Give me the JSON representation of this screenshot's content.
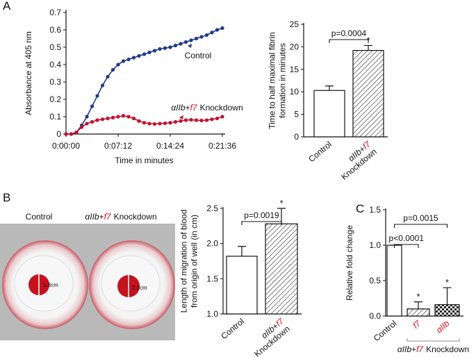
{
  "panel_labels": [
    "A",
    "B",
    "C"
  ],
  "photo": {
    "labels": [
      [
        "Control"
      ],
      [
        "αIIb",
        "+",
        "f7",
        "Knockdown"
      ]
    ],
    "measurements": [
      "1.8cm",
      "2.3cm"
    ]
  },
  "chart_data": [
    {
      "type": "line",
      "ylabel": "Absorbance at 405 nm",
      "xlabel": "Time in minutes",
      "x": [
        0,
        0.72,
        1.44,
        2.16,
        2.88,
        3.6,
        4.32,
        5.04,
        5.76,
        6.48,
        7.2,
        7.92,
        8.64,
        9.36,
        10.08,
        10.8,
        11.52,
        12.24,
        12.96,
        13.68,
        14.4,
        15.12,
        15.84,
        16.56,
        17.28,
        18,
        18.72,
        19.44,
        20.16,
        20.88,
        21.6
      ],
      "xlim": [
        0,
        21.6
      ],
      "xticks": [
        {
          "value": 0,
          "label": "0:00:00"
        },
        {
          "value": 7.2,
          "label": "0:07:12"
        },
        {
          "value": 14.4,
          "label": "0:14:24"
        },
        {
          "value": 21.6,
          "label": "0:21:36"
        }
      ],
      "ylim": [
        0,
        0.7
      ],
      "yticks": [
        0,
        0.1,
        0.2,
        0.3,
        0.4,
        0.5,
        0.6,
        0.7
      ],
      "series": [
        {
          "name": "Control",
          "color": "#1f3a8a",
          "values": [
            0,
            0,
            0.01,
            0.05,
            0.1,
            0.16,
            0.22,
            0.28,
            0.33,
            0.37,
            0.4,
            0.42,
            0.43,
            0.44,
            0.45,
            0.46,
            0.47,
            0.48,
            0.49,
            0.495,
            0.5,
            0.51,
            0.52,
            0.53,
            0.54,
            0.55,
            0.56,
            0.57,
            0.585,
            0.6,
            0.61
          ]
        },
        {
          "name_parts": [
            "αIIb",
            "+",
            "f7",
            "Knockdown"
          ],
          "color": "#c8102e",
          "values": [
            0,
            0,
            0.01,
            0.04,
            0.06,
            0.07,
            0.08,
            0.085,
            0.09,
            0.095,
            0.1,
            0.105,
            0.1,
            0.09,
            0.075,
            0.065,
            0.06,
            0.058,
            0.06,
            0.062,
            0.065,
            0.07,
            0.075,
            0.08,
            0.082,
            0.08,
            0.078,
            0.08,
            0.085,
            0.09,
            0.1
          ]
        }
      ]
    },
    {
      "type": "bar",
      "ylabel_lines": [
        "Time to half maximal fibrin",
        "formation in minutes"
      ],
      "categories": [
        [
          "Control"
        ],
        [
          "αIIb",
          "+",
          "f7",
          "Knockdown"
        ]
      ],
      "values": [
        10.3,
        19.2
      ],
      "errors": [
        1.0,
        1.1
      ],
      "fills": [
        "white",
        "hatch"
      ],
      "significance": [
        null,
        "*"
      ],
      "comparisons": [
        "p=0.0004"
      ],
      "ylim": [
        0,
        25
      ],
      "yticks": [
        0,
        5,
        10,
        15,
        20,
        25
      ]
    },
    {
      "type": "bar",
      "ylabel_lines": [
        "Length of migration of blood",
        "from origin of well (in cm)"
      ],
      "categories": [
        [
          "Control"
        ],
        [
          "αIIb",
          "+",
          "f7",
          "Knockdown"
        ]
      ],
      "values": [
        1.82,
        2.28
      ],
      "errors": [
        0.14,
        0.22
      ],
      "fills": [
        "white",
        "hatch"
      ],
      "significance": [
        null,
        "*"
      ],
      "comparisons": [
        "p=0.0019"
      ],
      "ylim": [
        1,
        2.5
      ],
      "yticks": [
        {
          "value": 1,
          "label": "1.0"
        },
        1.5,
        {
          "value": 2,
          "label": "2.0"
        },
        2.5
      ]
    },
    {
      "type": "bar",
      "ylabel_lines": [
        "Relative fold change"
      ],
      "categories": [
        [
          "Control"
        ],
        [
          "f7"
        ],
        [
          "αIIb"
        ]
      ],
      "values": [
        1.0,
        0.1,
        0.16
      ],
      "errors": [
        0,
        0.1,
        0.24
      ],
      "fills": [
        "white",
        "hatch",
        "check"
      ],
      "significance": [
        null,
        "*",
        "*"
      ],
      "comparisons": [
        "p<0.0001",
        "p=0.0015"
      ],
      "group_label": [
        "αIIb",
        "+",
        "f7",
        "Knockdown"
      ],
      "ylim": [
        0,
        1.5
      ],
      "yticks": [
        {
          "value": 0,
          "label": "0.0"
        },
        0.5,
        {
          "value": 1,
          "label": "1.0"
        },
        1.5
      ]
    }
  ]
}
